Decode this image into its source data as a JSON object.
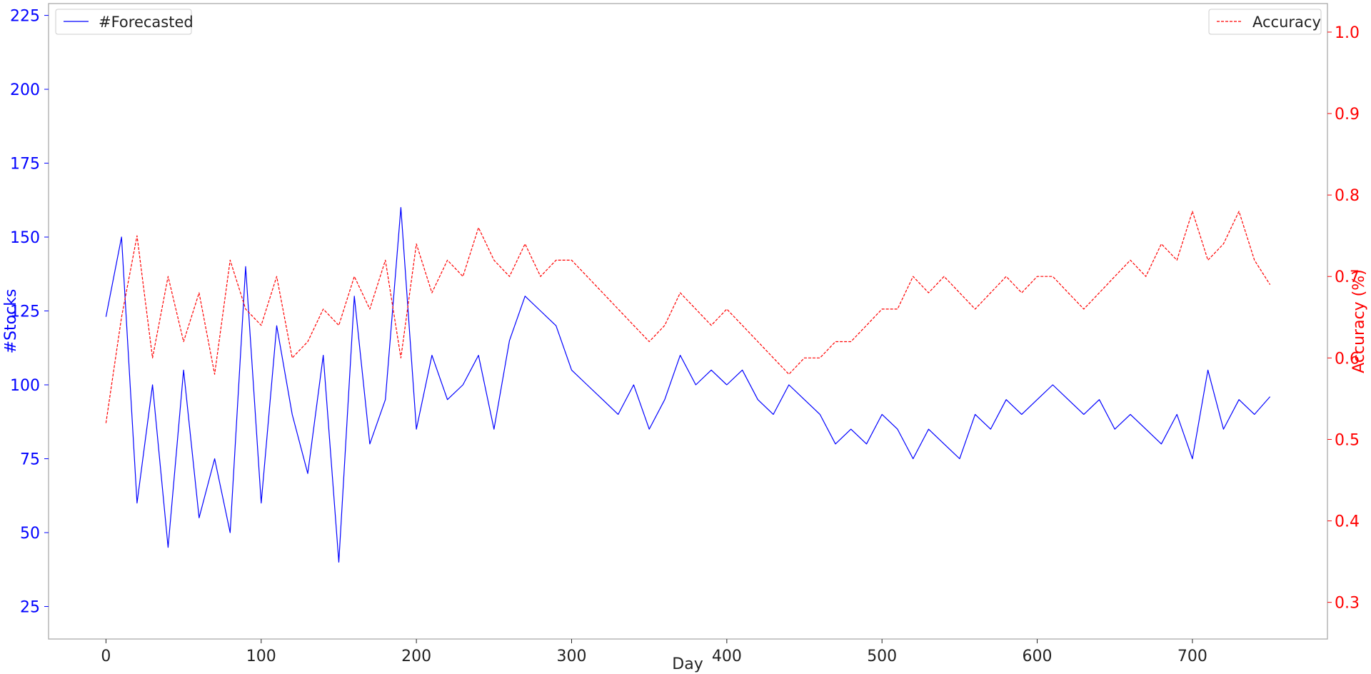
{
  "chart_data": {
    "type": "line",
    "xlabel": "Day",
    "ylabel_left": "#Stocks",
    "ylabel_right": "Accuracy (%)",
    "xlim": [
      -37,
      787
    ],
    "ylim_left": [
      14,
      229
    ],
    "ylim_right": [
      0.255,
      1.035
    ],
    "x_ticks": [
      0,
      100,
      200,
      300,
      400,
      500,
      600,
      700
    ],
    "y_left_ticks": [
      25,
      50,
      75,
      100,
      125,
      150,
      175,
      200,
      225
    ],
    "y_right_ticks": [
      0.3,
      0.4,
      0.5,
      0.6,
      0.7,
      0.8,
      0.9,
      1.0
    ],
    "grid": false,
    "colors": {
      "forecasted": "#0000ff",
      "accuracy": "#ff0000",
      "left_axis": "#0000ff",
      "right_axis": "#ff0000",
      "frame": "#aaaaaa"
    },
    "series": [
      {
        "name": "#Forecasted",
        "axis": "left",
        "style": "solid",
        "legend_position": "top-left",
        "x": [
          0,
          10,
          20,
          30,
          40,
          50,
          60,
          70,
          80,
          90,
          100,
          110,
          120,
          130,
          140,
          150,
          160,
          170,
          180,
          190,
          200,
          210,
          220,
          230,
          240,
          250,
          260,
          270,
          280,
          290,
          300,
          310,
          320,
          330,
          340,
          350,
          360,
          370,
          380,
          390,
          400,
          410,
          420,
          430,
          440,
          450,
          460,
          470,
          480,
          490,
          500,
          510,
          520,
          530,
          540,
          550,
          560,
          570,
          580,
          590,
          600,
          610,
          620,
          630,
          640,
          650,
          660,
          670,
          680,
          690,
          700,
          710,
          720,
          730,
          740,
          750
        ],
        "y": [
          123,
          150,
          60,
          100,
          45,
          105,
          55,
          75,
          50,
          140,
          60,
          120,
          90,
          70,
          110,
          40,
          130,
          80,
          95,
          160,
          85,
          110,
          95,
          100,
          110,
          85,
          115,
          130,
          125,
          120,
          105,
          100,
          95,
          90,
          100,
          85,
          95,
          110,
          100,
          105,
          100,
          105,
          95,
          90,
          100,
          95,
          90,
          80,
          85,
          80,
          90,
          85,
          75,
          85,
          80,
          75,
          90,
          85,
          95,
          90,
          95,
          100,
          95,
          90,
          95,
          85,
          90,
          85,
          80,
          90,
          75,
          105,
          85,
          95,
          90,
          96
        ]
      },
      {
        "name": "Accuracy",
        "axis": "right",
        "style": "dashed",
        "legend_position": "top-right",
        "x": [
          0,
          10,
          20,
          30,
          40,
          50,
          60,
          70,
          80,
          90,
          100,
          110,
          120,
          130,
          140,
          150,
          160,
          170,
          180,
          190,
          200,
          210,
          220,
          230,
          240,
          250,
          260,
          270,
          280,
          290,
          300,
          310,
          320,
          330,
          340,
          350,
          360,
          370,
          380,
          390,
          400,
          410,
          420,
          430,
          440,
          450,
          460,
          470,
          480,
          490,
          500,
          510,
          520,
          530,
          540,
          550,
          560,
          570,
          580,
          590,
          600,
          610,
          620,
          630,
          640,
          650,
          660,
          670,
          680,
          690,
          700,
          710,
          720,
          730,
          740,
          750
        ],
        "y": [
          0.52,
          0.65,
          0.75,
          0.6,
          0.7,
          0.62,
          0.68,
          0.58,
          0.72,
          0.66,
          0.64,
          0.7,
          0.6,
          0.62,
          0.66,
          0.64,
          0.7,
          0.66,
          0.72,
          0.6,
          0.74,
          0.68,
          0.72,
          0.7,
          0.76,
          0.72,
          0.7,
          0.74,
          0.7,
          0.72,
          0.72,
          0.7,
          0.68,
          0.66,
          0.64,
          0.62,
          0.64,
          0.68,
          0.66,
          0.64,
          0.66,
          0.64,
          0.62,
          0.6,
          0.58,
          0.6,
          0.6,
          0.62,
          0.62,
          0.64,
          0.66,
          0.66,
          0.7,
          0.68,
          0.7,
          0.68,
          0.66,
          0.68,
          0.7,
          0.68,
          0.7,
          0.7,
          0.68,
          0.66,
          0.68,
          0.7,
          0.72,
          0.7,
          0.74,
          0.72,
          0.78,
          0.72,
          0.74,
          0.78,
          0.72,
          0.69
        ]
      }
    ]
  }
}
